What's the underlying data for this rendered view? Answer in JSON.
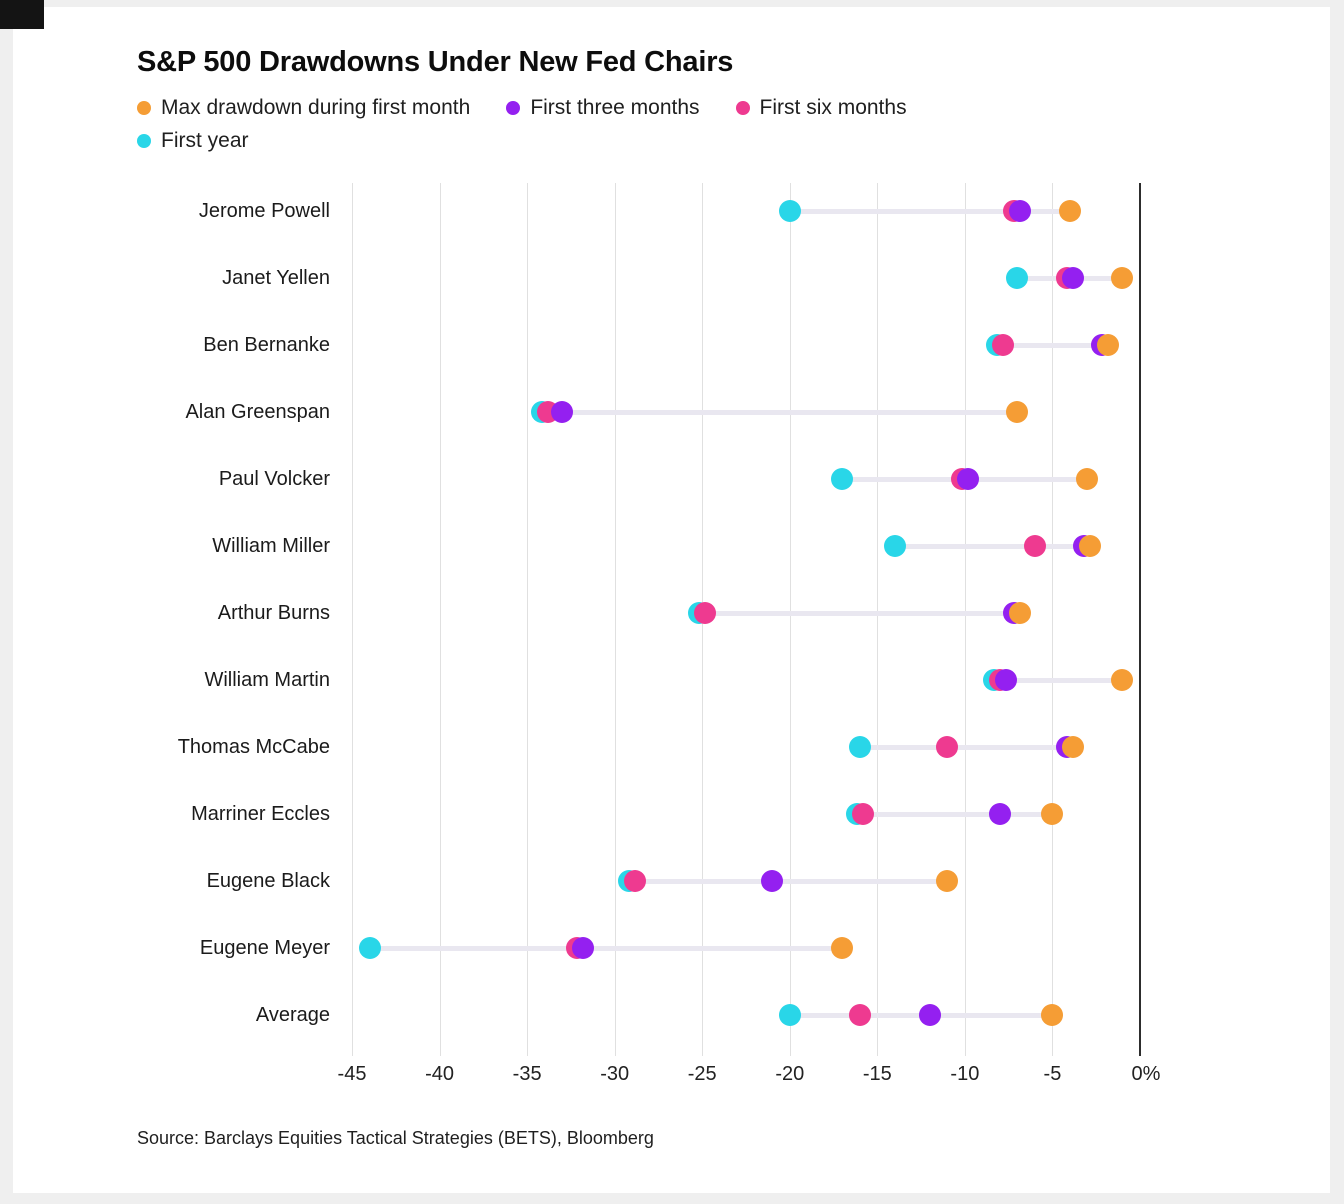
{
  "chart_data": {
    "type": "scatter",
    "variant": "dot-range",
    "title": "S&P 500 Drawdowns Under New Fed Chairs",
    "source": "Source: Barclays Equities Tactical Strategies (BETS), Bloomberg",
    "x_axis": {
      "min": -46.5,
      "max": 0,
      "unit": "percent",
      "ticks": [
        {
          "value": -45,
          "label": "-45"
        },
        {
          "value": -40,
          "label": "-40"
        },
        {
          "value": -35,
          "label": "-35"
        },
        {
          "value": -30,
          "label": "-30"
        },
        {
          "value": -25,
          "label": "-25"
        },
        {
          "value": -20,
          "label": "-20"
        },
        {
          "value": -15,
          "label": "-15"
        },
        {
          "value": -10,
          "label": "-10"
        },
        {
          "value": -5,
          "label": "-5"
        },
        {
          "value": 0,
          "label": "0%"
        }
      ],
      "grid": true
    },
    "legend_position": "top-left",
    "series": [
      {
        "key": "first_month",
        "name": "Max drawdown during first month",
        "color": "#F59D35",
        "z": 4
      },
      {
        "key": "three_months",
        "name": "First three months",
        "color": "#9420F0",
        "z": 3
      },
      {
        "key": "six_months",
        "name": "First six months",
        "color": "#EE3A90",
        "z": 2
      },
      {
        "key": "first_year",
        "name": "First year",
        "color": "#29D6E8",
        "z": 1
      }
    ],
    "rows": [
      {
        "label": "Jerome Powell",
        "first_month": -4,
        "three_months": -7,
        "six_months": -7,
        "first_year": -20
      },
      {
        "label": "Janet Yellen",
        "first_month": -1,
        "three_months": -4,
        "six_months": -4,
        "first_year": -7
      },
      {
        "label": "Ben Bernanke",
        "first_month": -2,
        "three_months": -2,
        "six_months": -8,
        "first_year": -8
      },
      {
        "label": "Alan Greenspan",
        "first_month": -7,
        "three_months": -33,
        "six_months": -34,
        "first_year": -34
      },
      {
        "label": "Paul Volcker",
        "first_month": -3,
        "three_months": -10,
        "six_months": -10,
        "first_year": -17
      },
      {
        "label": "William Miller",
        "first_month": -3,
        "three_months": -3,
        "six_months": -6,
        "first_year": -14
      },
      {
        "label": "Arthur Burns",
        "first_month": -7,
        "three_months": -7,
        "six_months": -25,
        "first_year": -25
      },
      {
        "label": "William Martin",
        "first_month": -1,
        "three_months": -8,
        "six_months": -8,
        "first_year": -8
      },
      {
        "label": "Thomas McCabe",
        "first_month": -4,
        "three_months": -4,
        "six_months": -11,
        "first_year": -16
      },
      {
        "label": "Marriner Eccles",
        "first_month": -5,
        "three_months": -8,
        "six_months": -16,
        "first_year": -16
      },
      {
        "label": "Eugene Black",
        "first_month": -11,
        "three_months": -21,
        "six_months": -29,
        "first_year": -29
      },
      {
        "label": "Eugene Meyer",
        "first_month": -17,
        "three_months": -32,
        "six_months": -32,
        "first_year": -44
      },
      {
        "label": "Average",
        "first_month": -5,
        "three_months": -12,
        "six_months": -16,
        "first_year": -20
      }
    ],
    "colors": {
      "grid": "#e0e0e0",
      "zero_axis": "#2d2d2d",
      "connector": "#e9e7f0",
      "text": "#1b1b1b"
    }
  }
}
